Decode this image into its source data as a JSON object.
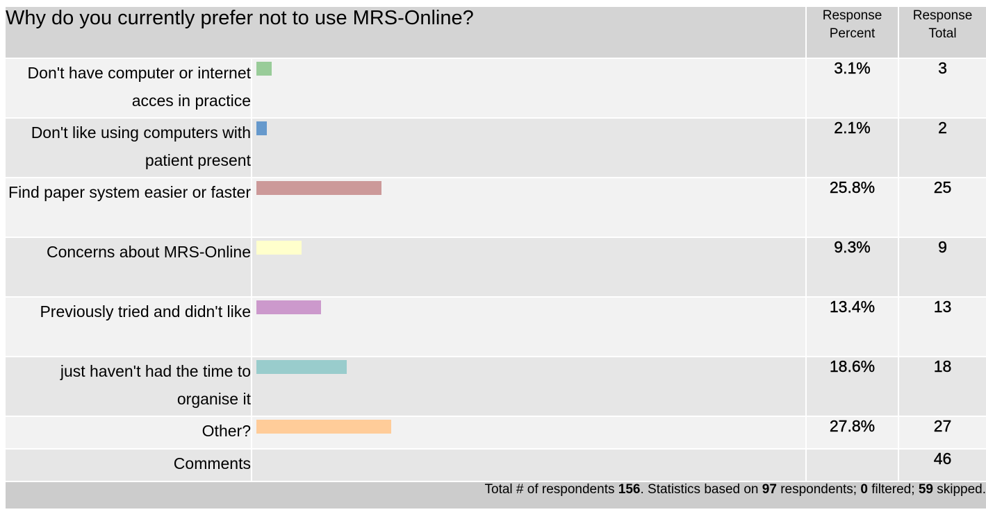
{
  "question": "Why do you currently prefer not to use MRS-Online?",
  "headers": {
    "percent": "Response Percent",
    "total": "Response Total"
  },
  "chart_data": {
    "type": "bar",
    "orientation": "horizontal",
    "title": "Why do you currently prefer not to use MRS-Online?",
    "categories": [
      "Don't have computer or internet acces in practice",
      "Don't like using computers with patient present",
      "Find paper system easier or faster",
      "Concerns about MRS-Online",
      "Previously tried and didn't like",
      "just haven't had the time to organise it",
      "Other?"
    ],
    "values": [
      3.1,
      2.1,
      25.8,
      9.3,
      13.4,
      18.6,
      27.8
    ],
    "percent_labels": [
      "3.1%",
      "2.1%",
      "25.8%",
      "9.3%",
      "13.4%",
      "18.6%",
      "27.8%"
    ],
    "totals": [
      "3",
      "2",
      "25",
      "9",
      "13",
      "18",
      "27"
    ],
    "colors": [
      "#99cc99",
      "#6699cc",
      "#cc9999",
      "#ffffcc",
      "#cc99cc",
      "#99cccc",
      "#ffcc99"
    ],
    "xlim": [
      0,
      100
    ]
  },
  "comments": {
    "label": "Comments",
    "total": "46"
  },
  "footer": {
    "t1": "Total # of respondents ",
    "respondents": "156",
    "t2": ". Statistics based on ",
    "based_on": "97",
    "t3": " respondents; ",
    "filtered": "0",
    "t4": " filtered; ",
    "skipped": "59",
    "t5": " skipped."
  }
}
